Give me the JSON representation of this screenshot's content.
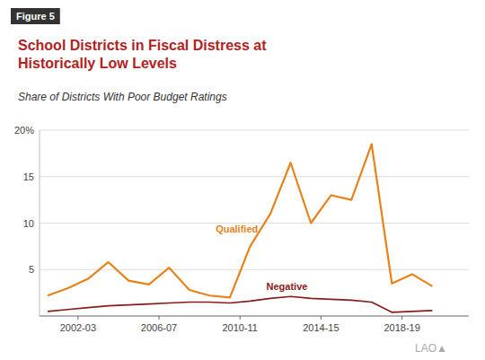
{
  "chart_data": {
    "type": "line",
    "figure_label": "Figure 5",
    "title": "School Districts in Fiscal Distress at\nHistorically Low Levels",
    "subtitle": "Share of Districts With Poor Budget Ratings",
    "watermark": "LAO▲",
    "x": [
      2000,
      2001,
      2002,
      2003,
      2004,
      2005,
      2006,
      2007,
      2008,
      2009,
      2010,
      2011,
      2012,
      2013,
      2014,
      2015,
      2016,
      2017,
      2018,
      2019
    ],
    "series": [
      {
        "color": "#E8821A",
        "values": [
          2.2,
          3.0,
          4.0,
          5.8,
          3.8,
          3.4,
          5.2,
          2.8,
          2.2,
          2.0,
          7.5,
          11.0,
          16.5,
          10.0,
          13.0,
          12.5,
          18.5,
          3.5,
          4.5,
          3.2
        ]
      },
      {
        "color": "#8B1A1A",
        "values": [
          0.5,
          0.7,
          0.9,
          1.1,
          1.2,
          1.3,
          1.4,
          1.5,
          1.5,
          1.4,
          1.6,
          1.9,
          2.1,
          1.9,
          1.8,
          1.7,
          1.5,
          0.4,
          0.5,
          0.6
        ]
      }
    ],
    "annotations": [
      {
        "text": "Qualified",
        "x": 2008.3,
        "y": 9.0,
        "series": 0
      },
      {
        "text": "Negative",
        "x": 2010.8,
        "y": 2.8,
        "series": 1
      }
    ],
    "xlim": [
      1999.6,
      2020.8
    ],
    "xticks": [
      {
        "value": 2001.5,
        "label": "2002-03"
      },
      {
        "value": 2005.5,
        "label": "2006-07"
      },
      {
        "value": 2009.5,
        "label": "2010-11"
      },
      {
        "value": 2013.5,
        "label": "2014-15"
      },
      {
        "value": 2017.5,
        "label": "2018-19"
      }
    ],
    "ylim": [
      0,
      20
    ],
    "yticks": [
      5,
      10,
      15,
      {
        "value": 20,
        "label": "20%"
      }
    ],
    "grid": true
  }
}
